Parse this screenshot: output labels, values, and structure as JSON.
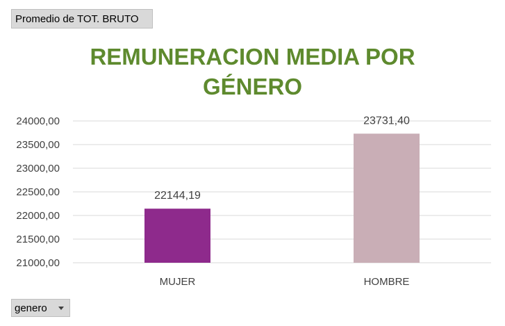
{
  "value_field_label": "Promedio de TOT. BRUTO",
  "filter_field_label": "genero",
  "filter_arrow_icon": "dropdown-arrow-icon",
  "chart_data": {
    "type": "bar",
    "title_lines": [
      "REMUNERACION MEDIA POR",
      "GÉNERO"
    ],
    "categories": [
      "MUJER",
      "HOMBRE"
    ],
    "values": [
      22144.19,
      23731.4
    ],
    "value_labels": [
      "22144,19",
      "23731,40"
    ],
    "ylim": [
      21000,
      24000
    ],
    "y_ticks": [
      21000,
      21500,
      22000,
      22500,
      23000,
      23500,
      24000
    ],
    "y_tick_labels": [
      "21000,00",
      "21500,00",
      "22000,00",
      "22500,00",
      "23000,00",
      "23500,00",
      "24000,00"
    ],
    "bar_colors": [
      "#8e2a8c",
      "#c9aeb6"
    ],
    "title_color": "#5e8a2e",
    "grid": true,
    "legend": "none"
  }
}
